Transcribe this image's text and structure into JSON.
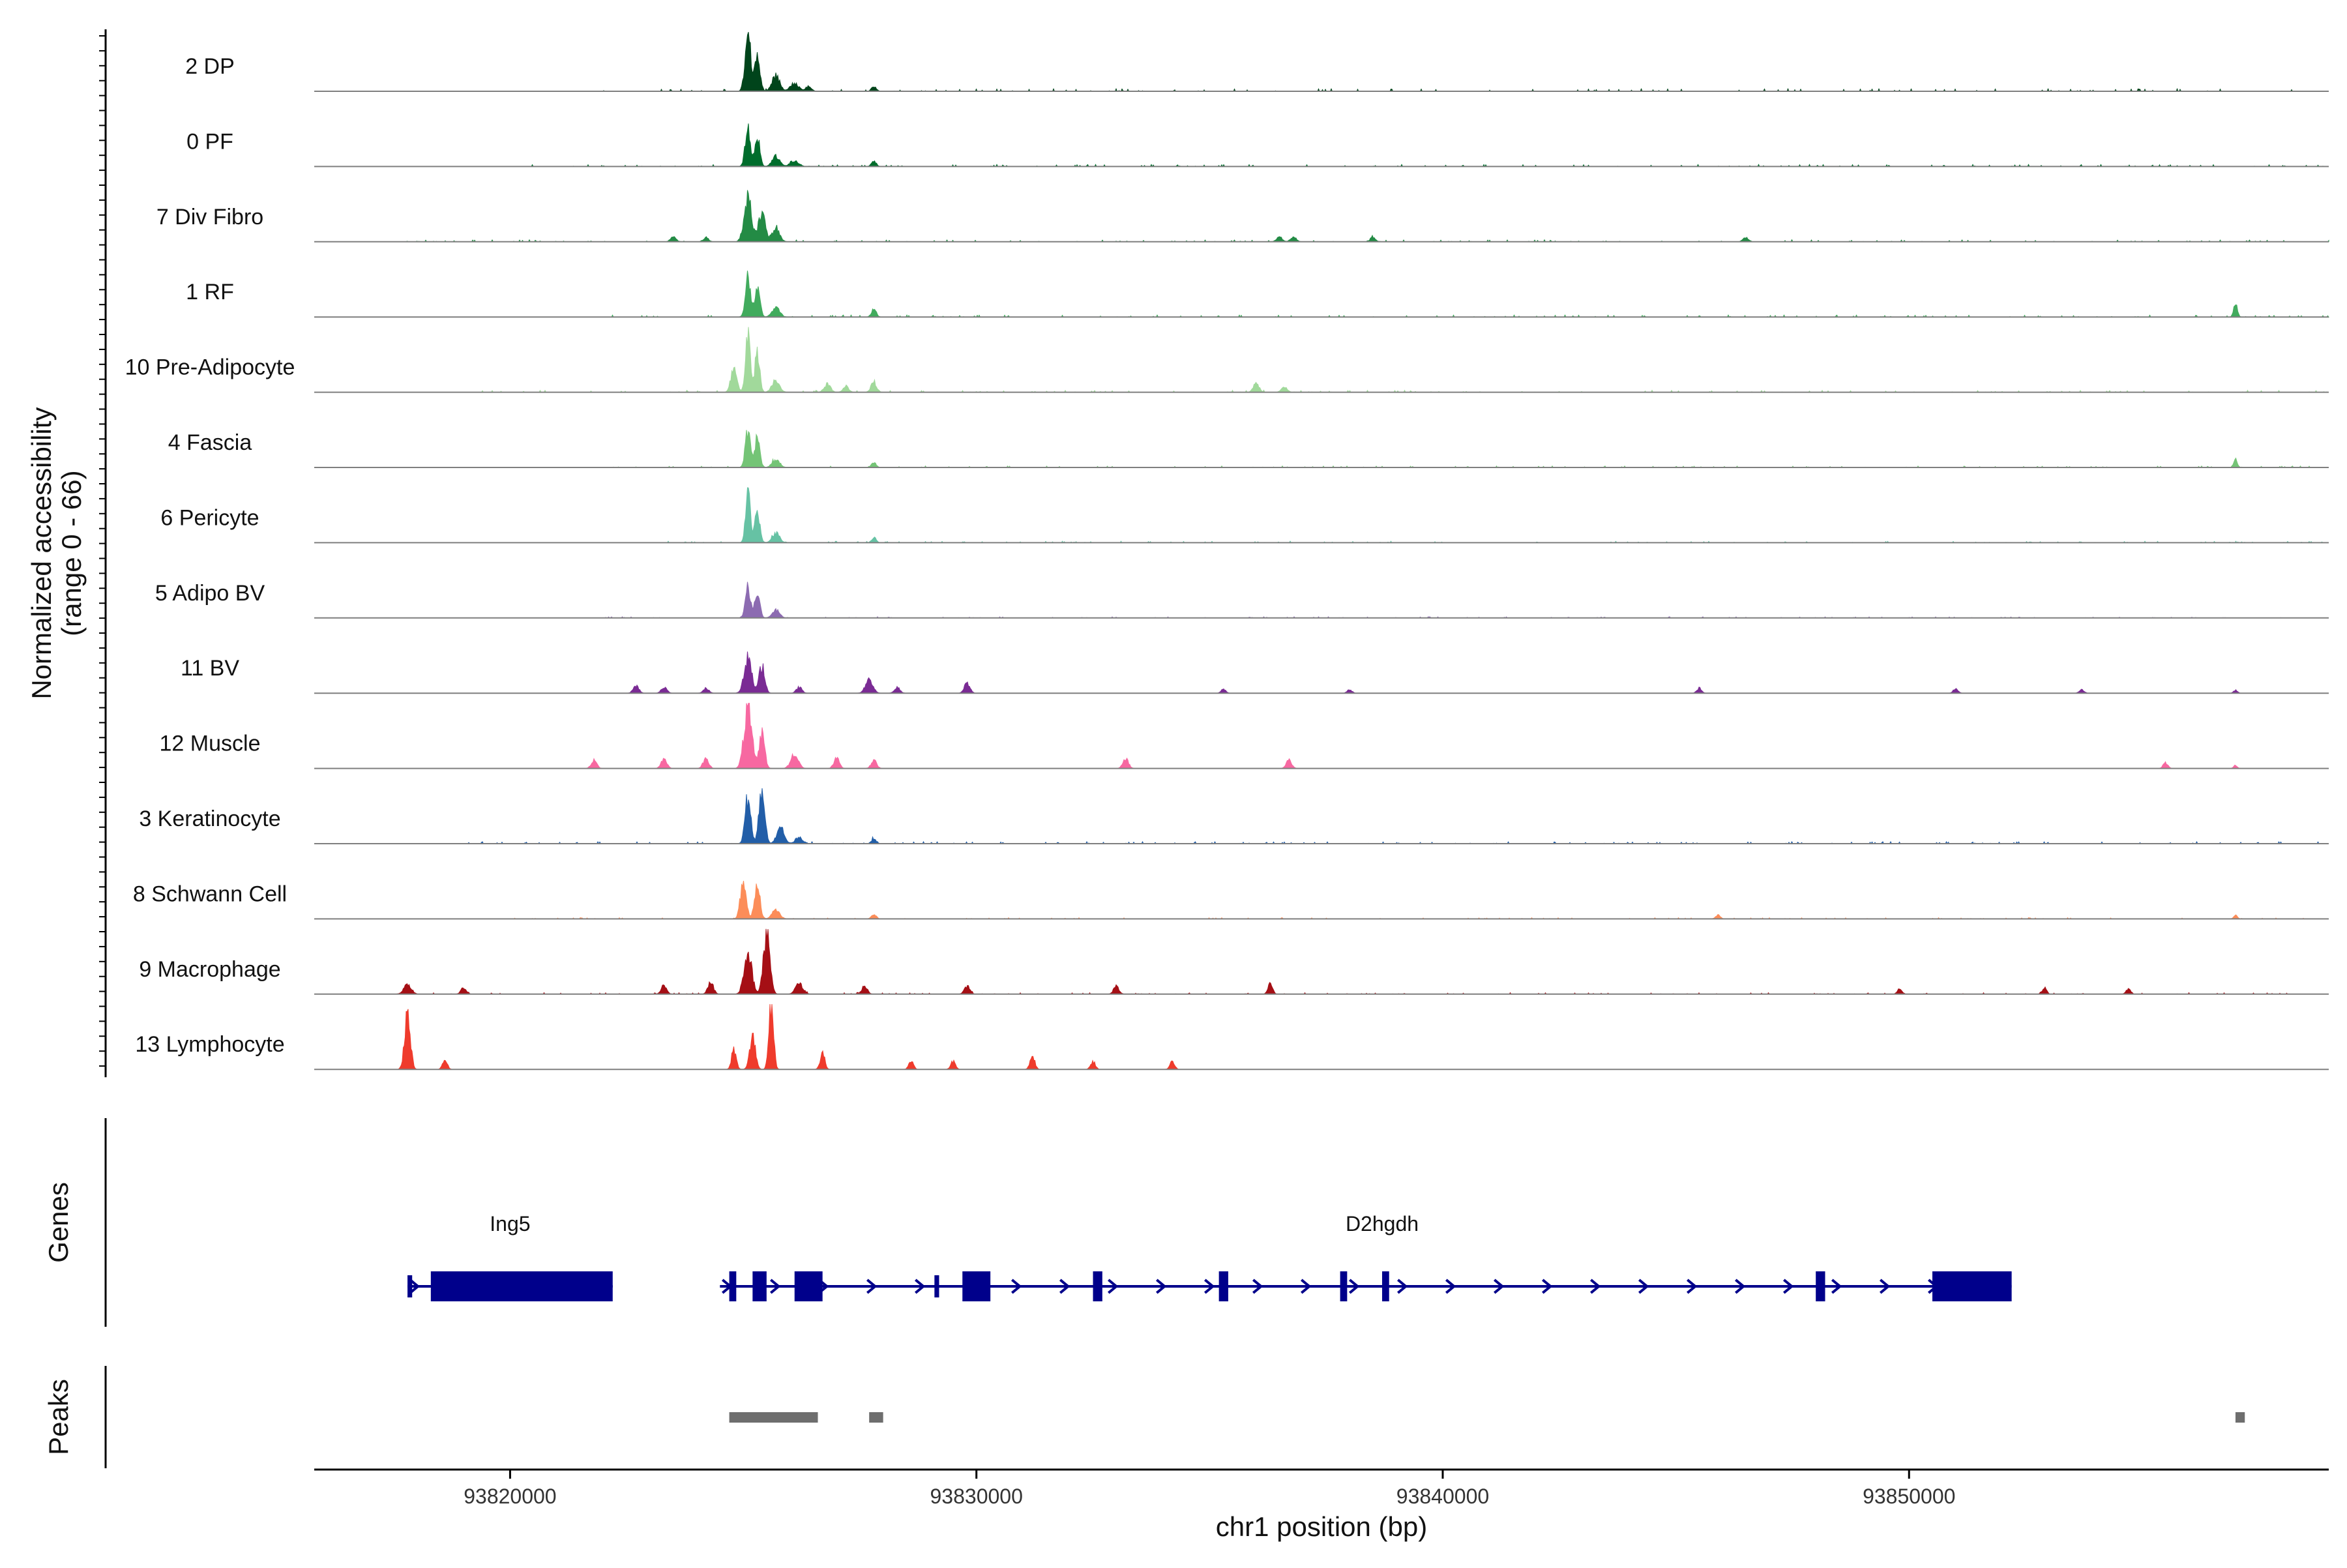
{
  "chart_data": {
    "type": "area",
    "title": "",
    "xlabel": "chr1 position (bp)",
    "ylabel": "Normalized accessibility",
    "ylabel_range": "(range 0 - 66)",
    "ylim": [
      0,
      66
    ],
    "xlim": [
      93815800,
      93859000
    ],
    "x_ticks": [
      93820000,
      93830000,
      93840000,
      93850000
    ],
    "x_tick_labels": [
      "93820000",
      "93830000",
      "93840000",
      "93850000"
    ],
    "genes_label": "Genes",
    "peaks_label": "Peaks",
    "colors": {
      "gene": "#00008b",
      "peak": "#6e6e6e",
      "axis": "#000000",
      "baseline": "#7f7f7f"
    },
    "tracks": [
      {
        "name": "2 DP",
        "color": "#00441b",
        "peaks": [
          [
            93825100,
            58,
            60
          ],
          [
            93825300,
            38,
            55
          ],
          [
            93825700,
            16,
            80
          ],
          [
            93826100,
            8,
            90
          ],
          [
            93826400,
            5,
            60
          ],
          [
            93827800,
            5,
            50
          ]
        ],
        "noise": [
          [
            93822000,
            93859000,
            2.5
          ]
        ]
      },
      {
        "name": "0 PF",
        "color": "#006d2c",
        "peaks": [
          [
            93825100,
            40,
            55
          ],
          [
            93825300,
            28,
            55
          ],
          [
            93825700,
            10,
            80
          ],
          [
            93826100,
            6,
            90
          ],
          [
            93827800,
            6,
            50
          ]
        ],
        "noise": [
          [
            93820000,
            93859000,
            2
          ]
        ]
      },
      {
        "name": "7 Div Fibro",
        "color": "#238b45",
        "peaks": [
          [
            93825100,
            44,
            80
          ],
          [
            93825400,
            32,
            70
          ],
          [
            93825700,
            14,
            80
          ],
          [
            93823500,
            5,
            60
          ],
          [
            93824200,
            4,
            60
          ],
          [
            93836500,
            5,
            60
          ],
          [
            93836800,
            5,
            60
          ],
          [
            93838500,
            4,
            60
          ],
          [
            93846500,
            4,
            60
          ]
        ],
        "noise": [
          [
            93817500,
            93859000,
            2
          ]
        ]
      },
      {
        "name": "1 RF",
        "color": "#41ab5d",
        "peaks": [
          [
            93825100,
            40,
            55
          ],
          [
            93825300,
            30,
            55
          ],
          [
            93825700,
            10,
            80
          ],
          [
            93827800,
            8,
            50
          ],
          [
            93857000,
            14,
            40
          ]
        ],
        "noise": [
          [
            93822000,
            93859000,
            2
          ]
        ]
      },
      {
        "name": "10 Pre-Adipocyte",
        "color": "#a1d99b",
        "peaks": [
          [
            93824800,
            28,
            60
          ],
          [
            93825100,
            62,
            50
          ],
          [
            93825300,
            40,
            50
          ],
          [
            93825700,
            12,
            80
          ],
          [
            93826800,
            8,
            70
          ],
          [
            93827200,
            6,
            60
          ],
          [
            93827800,
            10,
            60
          ],
          [
            93836000,
            10,
            60
          ],
          [
            93836600,
            6,
            60
          ]
        ],
        "noise": [
          [
            93819000,
            93859000,
            2
          ]
        ]
      },
      {
        "name": "4 Fascia",
        "color": "#74c476",
        "peaks": [
          [
            93825100,
            36,
            55
          ],
          [
            93825300,
            30,
            55
          ],
          [
            93825700,
            8,
            80
          ],
          [
            93827800,
            5,
            50
          ],
          [
            93857000,
            8,
            40
          ]
        ],
        "noise": [
          [
            93822000,
            93859000,
            1.5
          ]
        ]
      },
      {
        "name": "6 Pericyte",
        "color": "#66c2a4",
        "peaks": [
          [
            93825100,
            50,
            50
          ],
          [
            93825300,
            30,
            55
          ],
          [
            93825700,
            10,
            80
          ],
          [
            93827800,
            5,
            50
          ]
        ],
        "noise": [
          [
            93822000,
            93859000,
            1.5
          ]
        ]
      },
      {
        "name": "5 Adipo BV",
        "color": "#8c6bb1",
        "peaks": [
          [
            93825100,
            30,
            55
          ],
          [
            93825300,
            24,
            55
          ],
          [
            93825700,
            8,
            80
          ]
        ],
        "noise": [
          [
            93822000,
            93859000,
            1.2
          ]
        ]
      },
      {
        "name": "11 BV",
        "color": "#7a2b94",
        "peaks": [
          [
            93822700,
            8,
            60
          ],
          [
            93823300,
            6,
            60
          ],
          [
            93824200,
            5,
            60
          ],
          [
            93825100,
            34,
            80
          ],
          [
            93825400,
            28,
            60
          ],
          [
            93826200,
            6,
            60
          ],
          [
            93827700,
            14,
            80
          ],
          [
            93828300,
            6,
            60
          ],
          [
            93829800,
            10,
            60
          ],
          [
            93835300,
            4,
            50
          ],
          [
            93838000,
            4,
            50
          ],
          [
            93845500,
            5,
            50
          ],
          [
            93851000,
            5,
            50
          ],
          [
            93853700,
            4,
            50
          ],
          [
            93857000,
            3,
            40
          ]
        ],
        "noise": []
      },
      {
        "name": "12 Muscle",
        "color": "#f768a1",
        "peaks": [
          [
            93821800,
            8,
            60
          ],
          [
            93823300,
            10,
            60
          ],
          [
            93824200,
            10,
            60
          ],
          [
            93825100,
            66,
            80
          ],
          [
            93825400,
            34,
            60
          ],
          [
            93826100,
            14,
            80
          ],
          [
            93827000,
            10,
            60
          ],
          [
            93827800,
            8,
            60
          ],
          [
            93833200,
            10,
            60
          ],
          [
            93836700,
            8,
            60
          ],
          [
            93855500,
            6,
            50
          ],
          [
            93857000,
            3,
            40
          ]
        ],
        "noise": []
      },
      {
        "name": "3 Keratinocyte",
        "color": "#225ea8",
        "peaks": [
          [
            93825100,
            46,
            60
          ],
          [
            93825400,
            56,
            60
          ],
          [
            93825800,
            16,
            80
          ],
          [
            93826200,
            6,
            80
          ],
          [
            93827800,
            5,
            50
          ]
        ],
        "noise": [
          [
            93819000,
            93859000,
            2
          ]
        ]
      },
      {
        "name": "8 Schwann Cell",
        "color": "#fc8d59",
        "peaks": [
          [
            93825000,
            40,
            60
          ],
          [
            93825300,
            32,
            60
          ],
          [
            93825700,
            10,
            80
          ],
          [
            93827800,
            5,
            50
          ],
          [
            93845900,
            4,
            50
          ],
          [
            93857000,
            4,
            40
          ]
        ],
        "noise": [
          [
            93820000,
            93859000,
            1.2
          ]
        ]
      },
      {
        "name": "9 Macrophage",
        "color": "#a50f15",
        "peaks": [
          [
            93817800,
            10,
            80
          ],
          [
            93819000,
            6,
            60
          ],
          [
            93823300,
            8,
            60
          ],
          [
            93824300,
            12,
            60
          ],
          [
            93825100,
            44,
            80
          ],
          [
            93825500,
            60,
            70
          ],
          [
            93826200,
            10,
            80
          ],
          [
            93827600,
            8,
            60
          ],
          [
            93829800,
            8,
            60
          ],
          [
            93833000,
            8,
            60
          ],
          [
            93836300,
            10,
            50
          ],
          [
            93849800,
            5,
            50
          ],
          [
            93852900,
            6,
            50
          ],
          [
            93854700,
            5,
            50
          ]
        ],
        "noise": [
          [
            93817500,
            93859000,
            1.5
          ]
        ]
      },
      {
        "name": "13 Lymphocyte",
        "color": "#ef3b2c",
        "peaks": [
          [
            93817800,
            60,
            60
          ],
          [
            93818600,
            10,
            50
          ],
          [
            93824800,
            20,
            50
          ],
          [
            93825200,
            34,
            60
          ],
          [
            93825600,
            66,
            50
          ],
          [
            93826700,
            16,
            50
          ],
          [
            93828600,
            8,
            50
          ],
          [
            93829500,
            8,
            50
          ],
          [
            93831200,
            14,
            50
          ],
          [
            93832500,
            8,
            50
          ],
          [
            93834200,
            8,
            50
          ]
        ],
        "noise": []
      }
    ],
    "genes": [
      {
        "name": "Ing5",
        "strand": "+",
        "start": 93817800,
        "end": 93822200,
        "label_pos": 93820000,
        "exons": [
          [
            93817800,
            93817900,
            "utr"
          ],
          [
            93818300,
            93822200,
            "cds"
          ]
        ]
      },
      {
        "name": "D2hgdh",
        "strand": "+",
        "start": 93824500,
        "end": 93852200,
        "label_pos": 93838700,
        "exons": [
          [
            93824700,
            93824850,
            "cds"
          ],
          [
            93825200,
            93825500,
            "cds"
          ],
          [
            93826100,
            93826700,
            "cds"
          ],
          [
            93829100,
            93829200,
            "utr"
          ],
          [
            93829700,
            93830300,
            "cds"
          ],
          [
            93832500,
            93832700,
            "cds"
          ],
          [
            93835200,
            93835400,
            "cds"
          ],
          [
            93837800,
            93837950,
            "cds"
          ],
          [
            93838700,
            93838850,
            "cds"
          ],
          [
            93848000,
            93848200,
            "cds"
          ],
          [
            93850500,
            93852200,
            "cds"
          ]
        ]
      }
    ],
    "peaks_regions": [
      [
        93824700,
        93826600
      ],
      [
        93827700,
        93828000
      ],
      [
        93857000,
        93857200
      ]
    ]
  }
}
